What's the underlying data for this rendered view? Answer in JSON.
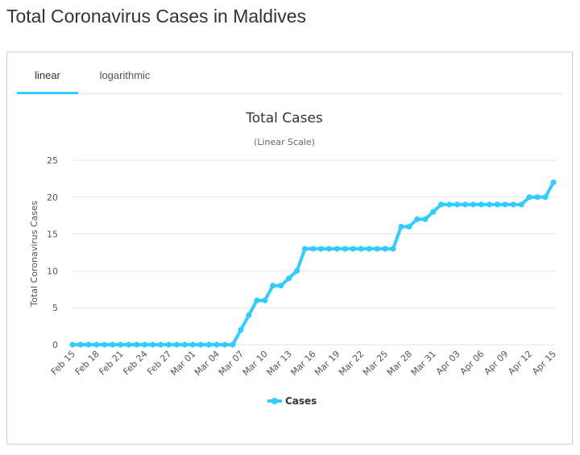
{
  "page": {
    "title": "Total Coronavirus Cases in Maldives"
  },
  "tabs": [
    {
      "label": "linear",
      "active": true
    },
    {
      "label": "logarithmic",
      "active": false
    }
  ],
  "colors": {
    "series": "#33ccff",
    "accent": "#33ccff",
    "grid": "#e6e6e6"
  },
  "chart_data": {
    "type": "line",
    "title": "Total Cases",
    "subtitle": "(Linear Scale)",
    "xlabel": "",
    "ylabel": "Total Coronavirus Cases",
    "ylim": [
      0,
      25
    ],
    "yticks": [
      0,
      5,
      10,
      15,
      20,
      25
    ],
    "grid": true,
    "legend": "bottom-center",
    "categories": [
      "Feb 15",
      "Feb 16",
      "Feb 17",
      "Feb 18",
      "Feb 19",
      "Feb 20",
      "Feb 21",
      "Feb 22",
      "Feb 23",
      "Feb 24",
      "Feb 25",
      "Feb 26",
      "Feb 27",
      "Feb 28",
      "Feb 29",
      "Mar 01",
      "Mar 02",
      "Mar 03",
      "Mar 04",
      "Mar 05",
      "Mar 06",
      "Mar 07",
      "Mar 08",
      "Mar 09",
      "Mar 10",
      "Mar 11",
      "Mar 12",
      "Mar 13",
      "Mar 14",
      "Mar 15",
      "Mar 16",
      "Mar 17",
      "Mar 18",
      "Mar 19",
      "Mar 20",
      "Mar 21",
      "Mar 22",
      "Mar 23",
      "Mar 24",
      "Mar 25",
      "Mar 26",
      "Mar 27",
      "Mar 28",
      "Mar 29",
      "Mar 30",
      "Mar 31",
      "Apr 01",
      "Apr 02",
      "Apr 03",
      "Apr 04",
      "Apr 05",
      "Apr 06",
      "Apr 07",
      "Apr 08",
      "Apr 09",
      "Apr 10",
      "Apr 11",
      "Apr 12",
      "Apr 13",
      "Apr 14",
      "Apr 15"
    ],
    "xtick_labels": [
      "Feb 15",
      "Feb 18",
      "Feb 21",
      "Feb 24",
      "Feb 27",
      "Mar 01",
      "Mar 04",
      "Mar 07",
      "Mar 10",
      "Mar 13",
      "Mar 16",
      "Mar 19",
      "Mar 22",
      "Mar 25",
      "Mar 28",
      "Mar 31",
      "Apr 03",
      "Apr 06",
      "Apr 09",
      "Apr 12",
      "Apr 15"
    ],
    "series": [
      {
        "name": "Cases",
        "values": [
          0,
          0,
          0,
          0,
          0,
          0,
          0,
          0,
          0,
          0,
          0,
          0,
          0,
          0,
          0,
          0,
          0,
          0,
          0,
          0,
          0,
          2,
          4,
          6,
          6,
          8,
          8,
          9,
          10,
          13,
          13,
          13,
          13,
          13,
          13,
          13,
          13,
          13,
          13,
          13,
          13,
          16,
          16,
          17,
          17,
          18,
          19,
          19,
          19,
          19,
          19,
          19,
          19,
          19,
          19,
          19,
          19,
          20,
          20,
          20,
          22
        ]
      }
    ]
  }
}
